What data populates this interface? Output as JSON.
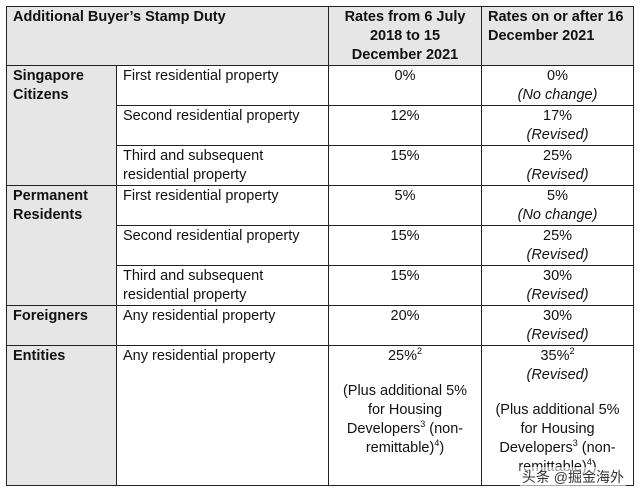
{
  "table": {
    "header": {
      "col1": "Additional Buyer’s Stamp Duty",
      "col2": "Rates from 6 July 2018 to 15 December 2021",
      "col3": "Rates on or after 16 December 2021"
    },
    "groups": {
      "sc": {
        "label": "Singapore Citizens",
        "rows": [
          {
            "property": "First residential property",
            "old_rate": "0%",
            "new_rate": "0%",
            "note": "(No change)"
          },
          {
            "property": "Second residential property",
            "old_rate": "12%",
            "new_rate": "17%",
            "note": "(Revised)"
          },
          {
            "property": "Third and subsequent residential property",
            "old_rate": "15%",
            "new_rate": "25%",
            "note": "(Revised)"
          }
        ]
      },
      "pr": {
        "label": "Permanent Residents",
        "rows": [
          {
            "property": "First residential property",
            "old_rate": "5%",
            "new_rate": "5%",
            "note": "(No change)"
          },
          {
            "property": "Second residential property",
            "old_rate": "15%",
            "new_rate": "25%",
            "note": "(Revised)"
          },
          {
            "property": "Third and subsequent residential property",
            "old_rate": "15%",
            "new_rate": "30%",
            "note": "(Revised)"
          }
        ]
      },
      "fr": {
        "label": "Foreigners",
        "rows": [
          {
            "property": "Any residential property",
            "old_rate": "20%",
            "new_rate": "30%",
            "note": "(Revised)"
          }
        ]
      },
      "en": {
        "label": "Entities",
        "property": "Any residential property",
        "old_rate": "25%",
        "old_sup": "2",
        "new_rate": "35%",
        "new_sup": "2",
        "note": "(Revised)",
        "extra_a": "(Plus additional 5% for Housing Developers",
        "extra_sup3": "3",
        "extra_b": " (non-remittable)",
        "extra_sup4": "4",
        "extra_c": ")"
      }
    }
  },
  "watermark": "头条 @掘金海外"
}
